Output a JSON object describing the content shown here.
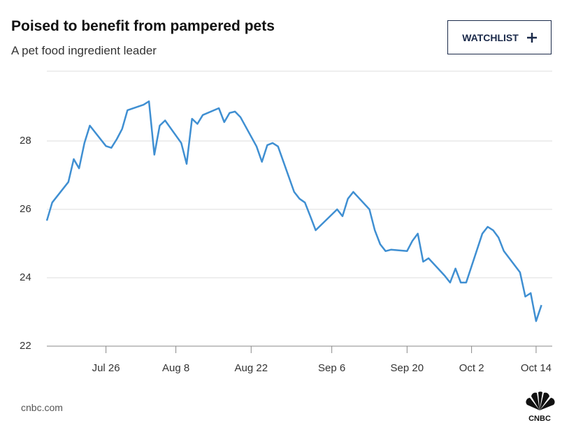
{
  "header": {
    "title": "Poised to benefit from pampered pets",
    "subtitle": "A pet food ingredient leader",
    "button": "WATCHLIST"
  },
  "footer": {
    "source": "cnbc.com",
    "logo": "CNBC"
  },
  "chart_data": {
    "type": "line",
    "color": "#3f8fd2",
    "x": [
      "Jul 15",
      "Jul 16",
      "Jul 19",
      "Jul 20",
      "Jul 21",
      "Jul 22",
      "Jul 23",
      "Jul 26",
      "Jul 27",
      "Jul 28",
      "Jul 29",
      "Jul 30",
      "Aug 2",
      "Aug 3",
      "Aug 4",
      "Aug 5",
      "Aug 6",
      "Aug 9",
      "Aug 10",
      "Aug 11",
      "Aug 12",
      "Aug 13",
      "Aug 16",
      "Aug 17",
      "Aug 18",
      "Aug 19",
      "Aug 20",
      "Aug 23",
      "Aug 24",
      "Aug 25",
      "Aug 26",
      "Aug 27",
      "Aug 30",
      "Aug 31",
      "Sep 1",
      "Sep 2",
      "Sep 3",
      "Sep 7",
      "Sep 8",
      "Sep 9",
      "Sep 10",
      "Sep 13",
      "Sep 14",
      "Sep 15",
      "Sep 16",
      "Sep 17",
      "Sep 20",
      "Sep 21",
      "Sep 22",
      "Sep 23",
      "Sep 24",
      "Sep 27",
      "Sep 28",
      "Sep 29",
      "Sep 30",
      "Oct 1",
      "Oct 4",
      "Oct 5",
      "Oct 6",
      "Oct 7",
      "Oct 8",
      "Oct 11",
      "Oct 12",
      "Oct 13",
      "Oct 14",
      "Oct 15"
    ],
    "values": [
      25.67,
      26.2,
      26.8,
      27.47,
      27.2,
      27.94,
      28.45,
      27.85,
      27.8,
      28.05,
      28.35,
      28.9,
      29.06,
      29.16,
      27.6,
      28.45,
      28.6,
      27.94,
      27.33,
      28.65,
      28.5,
      28.76,
      28.96,
      28.55,
      28.82,
      28.86,
      28.7,
      27.84,
      27.39,
      27.88,
      27.94,
      27.84,
      26.51,
      26.31,
      26.2,
      25.8,
      25.39,
      26.0,
      25.8,
      26.31,
      26.51,
      26.0,
      25.39,
      24.98,
      24.78,
      24.82,
      24.78,
      25.08,
      25.29,
      24.47,
      24.57,
      24.06,
      23.86,
      24.27,
      23.86,
      23.86,
      25.29,
      25.49,
      25.39,
      25.18,
      24.78,
      24.16,
      23.45,
      23.55,
      22.73,
      23.2
    ],
    "xlim": [
      "Jul 15",
      "Oct 17"
    ],
    "xticks": [
      "Jul 26",
      "Aug 8",
      "Aug 22",
      "Sep 6",
      "Sep 20",
      "Oct 2",
      "Oct 14"
    ],
    "ylim": [
      22,
      30
    ],
    "yticks": [
      22,
      24,
      26,
      28
    ],
    "grid": true
  }
}
